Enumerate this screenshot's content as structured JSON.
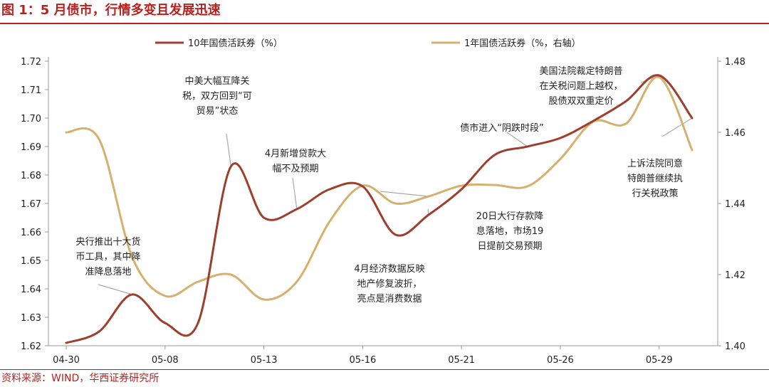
{
  "header": {
    "title": "图 1：5 月债市，行情多变且发展迅速"
  },
  "source_note": "资料来源：WIND，华西证券研究所",
  "colors": {
    "brand": "#b5231f",
    "series_10y": "#9e3e2d",
    "series_1y": "#d5b06e",
    "axis": "#999999",
    "callout_line": "#aaaaaa"
  },
  "chart_data": {
    "type": "line",
    "title": "",
    "xlabel": "",
    "ylabel": "",
    "x_ticks": [
      "04-30",
      "05-08",
      "05-13",
      "05-16",
      "05-21",
      "05-26",
      "05-29"
    ],
    "y_left": {
      "lim": [
        1.62,
        1.72
      ],
      "ticks": [
        "1.62",
        "1.63",
        "1.64",
        "1.65",
        "1.66",
        "1.67",
        "1.68",
        "1.69",
        "1.70",
        "1.71",
        "1.72"
      ]
    },
    "y_right": {
      "lim": [
        1.4,
        1.48
      ],
      "ticks": [
        "1.40",
        "1.42",
        "1.44",
        "1.46",
        "1.48"
      ]
    },
    "legend": {
      "placement": "top"
    },
    "x": [
      "04-30",
      "05-06",
      "05-07",
      "05-08",
      "05-09",
      "05-12",
      "05-13",
      "05-14",
      "05-15",
      "05-16",
      "05-19",
      "05-20",
      "05-21",
      "05-22",
      "05-23",
      "05-26",
      "05-27",
      "05-28",
      "05-29",
      "05-30"
    ],
    "series": [
      {
        "name": "10年国债活跃券（%）",
        "axis": "left",
        "values": [
          1.621,
          1.625,
          1.638,
          1.628,
          1.628,
          1.683,
          1.665,
          1.668,
          1.675,
          1.676,
          1.659,
          1.666,
          1.675,
          1.687,
          1.69,
          1.693,
          1.699,
          1.706,
          1.715,
          1.7
        ]
      },
      {
        "name": "1年国债活跃券（%，右轴）",
        "axis": "right",
        "values": [
          1.46,
          1.458,
          1.425,
          1.414,
          1.418,
          1.42,
          1.413,
          1.418,
          1.435,
          1.445,
          1.44,
          1.442,
          1.445,
          1.4452,
          1.4448,
          1.4525,
          1.463,
          1.4625,
          1.4755,
          1.455
        ]
      }
    ],
    "annotations": [
      {
        "lines": [
          "中美大幅互降关",
          "税，双方回到“可",
          "贸易”状态"
        ],
        "x": "05-12",
        "series": 0
      },
      {
        "lines": [
          "4月新增贷款大",
          "幅不及预期"
        ],
        "x": "05-14",
        "series": 0
      },
      {
        "lines": [
          "央行推出十大货",
          "币工具，其中降",
          "准降息落地"
        ],
        "x": "05-07",
        "series": 0
      },
      {
        "lines": [
          "4月经济数据反映",
          "地产修复波折，",
          "亮点是消费数据"
        ],
        "x": "05-20",
        "series": 1
      },
      {
        "lines": [
          "20日大行存款降",
          "息落地，市场19",
          "日提前交易预期"
        ],
        "x": "05-20",
        "series": 0
      },
      {
        "lines": [
          "债市进入“阴跌时段”"
        ],
        "x": "05-23",
        "series": 0
      },
      {
        "lines": [
          "美国法院裁定特朗普",
          "在关税问题上越权，",
          "股债双双重定价"
        ],
        "x": "05-29",
        "series": 0
      },
      {
        "lines": [
          "上诉法院同意",
          "特朗普继续执",
          "行关税政策"
        ],
        "x": "05-30",
        "series": 0
      }
    ]
  }
}
